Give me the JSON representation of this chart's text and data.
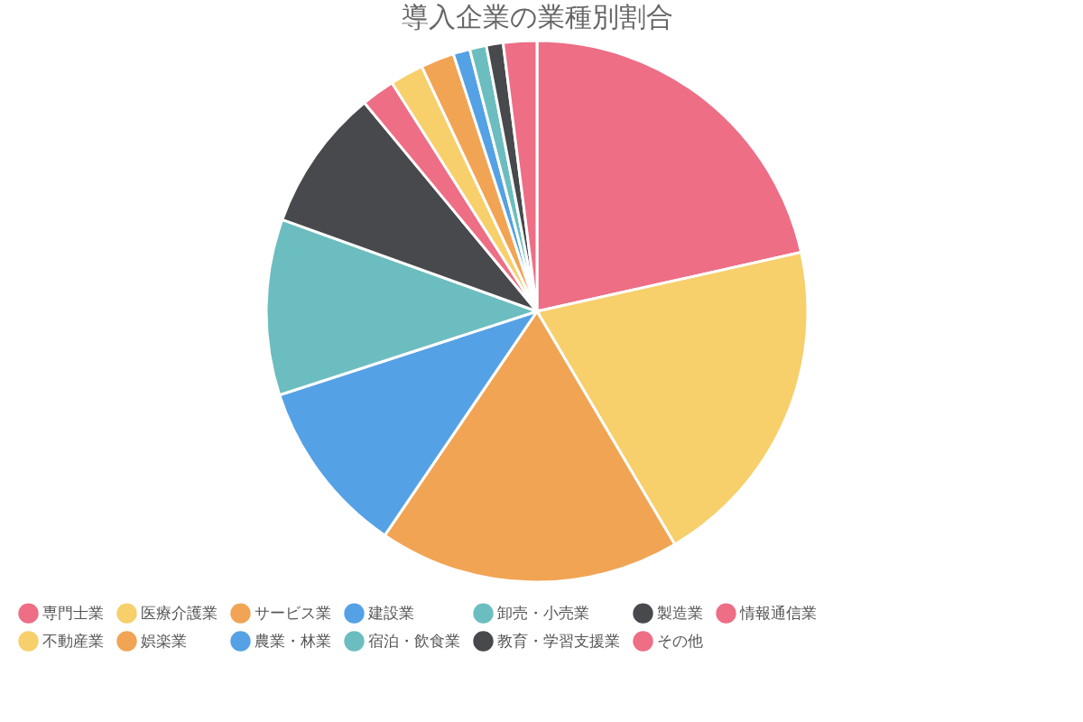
{
  "chart_data": {
    "type": "pie",
    "title": "導入企業の業種別割合",
    "categories": [
      "専門士業",
      "医療介護業",
      "サービス業",
      "建設業",
      "卸売・小売業",
      "製造業",
      "情報通信業",
      "不動産業",
      "娯楽業",
      "農業・林業",
      "宿泊・飲食業",
      "教育・学習支援業",
      "その他"
    ],
    "values": [
      21.5,
      20,
      18,
      10.5,
      10.5,
      8.5,
      2,
      2,
      2,
      1,
      1,
      1,
      2
    ],
    "colors": [
      "#ed6e85",
      "#f7cf6b",
      "#f1a454",
      "#55a1e5",
      "#6cbdbf",
      "#47494c",
      "#ed6e85",
      "#f7cf6b",
      "#f1a454",
      "#55a1e5",
      "#6cbdbf",
      "#47494c",
      "#ed6e85"
    ],
    "legend": "bottom"
  }
}
